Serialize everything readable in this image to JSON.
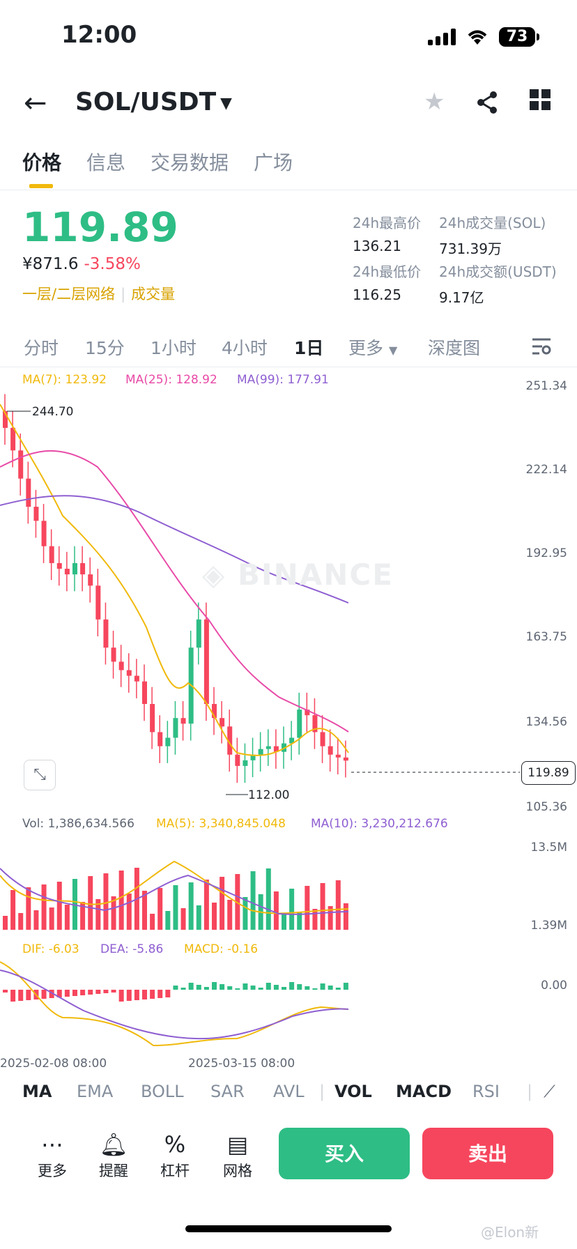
{
  "status": {
    "time": "12:00",
    "battery": "73"
  },
  "header": {
    "pair": "SOL/USDT"
  },
  "tabs": [
    "价格",
    "信息",
    "交易数据",
    "广场"
  ],
  "ticker": {
    "price": "119.89",
    "cny": "¥871.6",
    "change": "-3.58%",
    "tag1": "一层/二层网络",
    "tag2": "成交量",
    "high_label": "24h最高价",
    "high": "136.21",
    "vol_label": "24h成交量(SOL)",
    "vol": "731.39万",
    "low_label": "24h最低价",
    "low": "116.25",
    "amt_label": "24h成交额(USDT)",
    "amt": "9.17亿"
  },
  "intervals": [
    "分时",
    "15分",
    "1小时",
    "4小时",
    "1日",
    "更多",
    "深度图"
  ],
  "ma_legend": {
    "ma7": "MA(7): 123.92",
    "ma25": "MA(25): 128.92",
    "ma99": "MA(99): 177.91"
  },
  "price_axis": [
    "251.34",
    "222.14",
    "192.95",
    "163.75",
    "134.56",
    "105.36"
  ],
  "high_mark": "244.70",
  "low_mark": "112.00",
  "last_price": "119.89",
  "watermark": "BINANCE",
  "vol_legend": {
    "vol": "Vol: 1,386,634.566",
    "ma5": "MA(5): 3,340,845.048",
    "ma10": "MA(10): 3,230,212.676"
  },
  "vol_axis": [
    "13.5M",
    "1.39M"
  ],
  "macd_legend": {
    "dif": "DIF: -6.03",
    "dea": "DEA: -5.86",
    "macd": "MACD: -0.16"
  },
  "macd_axis": [
    "0.00"
  ],
  "dates": [
    "2025-02-08 08:00",
    "2025-03-15 08:00"
  ],
  "indicators": [
    "MA",
    "EMA",
    "BOLL",
    "SAR",
    "AVL",
    "VOL",
    "MACD",
    "RSI"
  ],
  "bottom": [
    "更多",
    "提醒",
    "杠杆",
    "网格"
  ],
  "buy": "买入",
  "sell": "卖出",
  "credit": "@Elon新",
  "colors": {
    "up": "#2ebd85",
    "down": "#f6465d",
    "accent": "#f0b90b",
    "ma7": "#f0b90b",
    "ma25": "#e84aa7",
    "ma99": "#8e5ed1"
  },
  "chart_data": {
    "type": "candlestick",
    "price_range": [
      105.36,
      251.34
    ],
    "series_close_approx": [
      238,
      230,
      220,
      210,
      205,
      196,
      190,
      188,
      186,
      190,
      186,
      182,
      170,
      160,
      155,
      152,
      150,
      148,
      140,
      130,
      125,
      128,
      135,
      133,
      160,
      170,
      140,
      135,
      132,
      122,
      118,
      120,
      122,
      124,
      125,
      123,
      126,
      128,
      138,
      136,
      130,
      125,
      122,
      121,
      119.89
    ]
  }
}
